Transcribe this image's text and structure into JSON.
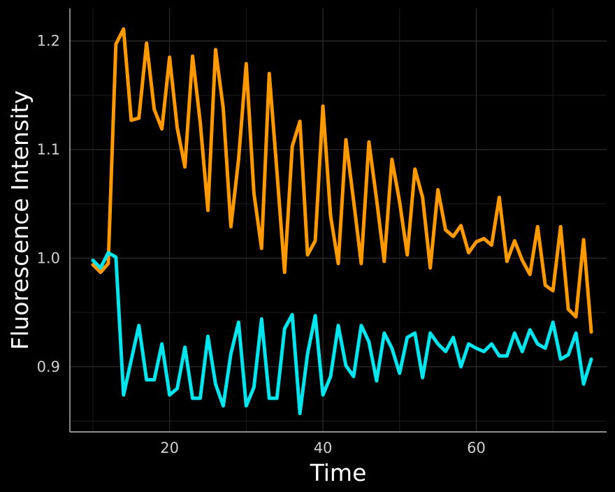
{
  "chart_data": {
    "type": "line",
    "title": "",
    "xlabel": "Time",
    "ylabel": "Fluorescence Intensity",
    "xlim": [
      7,
      77
    ],
    "ylim": [
      0.84,
      1.23
    ],
    "xticks": [
      20,
      40,
      60
    ],
    "xtick_labels": [
      "20",
      "40",
      "60"
    ],
    "yticks": [
      0.9,
      1.0,
      1.1,
      1.2
    ],
    "ytick_labels": [
      "0.9",
      "1.0",
      "1.1",
      "1.2"
    ],
    "grid": true,
    "legend": "none",
    "x": [
      10,
      11,
      12,
      13,
      14,
      15,
      16,
      17,
      18,
      19,
      20,
      21,
      22,
      23,
      24,
      25,
      26,
      27,
      28,
      29,
      30,
      31,
      32,
      33,
      34,
      35,
      36,
      37,
      38,
      39,
      40,
      41,
      42,
      43,
      44,
      45,
      46,
      47,
      48,
      49,
      50,
      51,
      52,
      53,
      54,
      55,
      56,
      57,
      58,
      59,
      60,
      61,
      62,
      63,
      64,
      65,
      66,
      67,
      68,
      69,
      70,
      71,
      72,
      73,
      74,
      75
    ],
    "series": [
      {
        "color": "#FF9900",
        "values": [
          0.994,
          0.987,
          0.995,
          1.197,
          1.211,
          1.127,
          1.129,
          1.198,
          1.137,
          1.119,
          1.185,
          1.12,
          1.084,
          1.186,
          1.125,
          1.044,
          1.192,
          1.138,
          1.029,
          1.091,
          1.179,
          1.06,
          1.009,
          1.17,
          1.08,
          0.987,
          1.103,
          1.126,
          1.003,
          1.016,
          1.14,
          1.039,
          0.995,
          1.109,
          1.053,
          0.995,
          1.107,
          1.054,
          0.997,
          1.091,
          1.052,
          1.003,
          1.082,
          1.056,
          0.991,
          1.063,
          1.026,
          1.02,
          1.03,
          1.005,
          1.015,
          1.018,
          1.012,
          1.056,
          0.997,
          1.016,
          0.998,
          0.985,
          1.029,
          0.975,
          0.97,
          1.029,
          0.953,
          0.946,
          1.017,
          0.932
        ]
      },
      {
        "color": "#00E5EE",
        "values": [
          0.998,
          0.991,
          1.005,
          1.001,
          0.874,
          0.906,
          0.938,
          0.888,
          0.888,
          0.921,
          0.874,
          0.88,
          0.918,
          0.871,
          0.871,
          0.928,
          0.884,
          0.864,
          0.912,
          0.941,
          0.864,
          0.881,
          0.944,
          0.871,
          0.871,
          0.935,
          0.948,
          0.857,
          0.912,
          0.947,
          0.874,
          0.891,
          0.938,
          0.901,
          0.891,
          0.938,
          0.923,
          0.887,
          0.931,
          0.917,
          0.894,
          0.927,
          0.931,
          0.89,
          0.931,
          0.921,
          0.914,
          0.927,
          0.9,
          0.921,
          0.917,
          0.914,
          0.921,
          0.91,
          0.91,
          0.931,
          0.914,
          0.934,
          0.921,
          0.917,
          0.941,
          0.907,
          0.911,
          0.931,
          0.884,
          0.907
        ]
      }
    ]
  }
}
